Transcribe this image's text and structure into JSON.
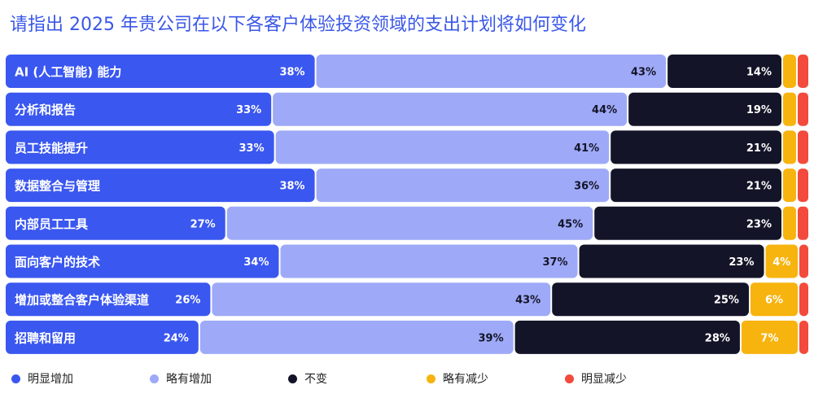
{
  "chart_data": {
    "type": "bar",
    "orientation": "horizontal",
    "stacked": true,
    "normalized_to": 100,
    "title": "请指出 2025 年贵公司在以下各客户体验投资领域的支出计划将如何变化",
    "categories": [
      "AI (人工智能) 能力",
      "分析和报告",
      "员工技能提升",
      "数据整合与管理",
      "内部员工工具",
      "面向客户的技术",
      "增加或整合客户体验渠道",
      "招聘和留用"
    ],
    "series": [
      {
        "name": "明显增加",
        "color": "#3a57f0",
        "values": [
          38,
          33,
          33,
          38,
          27,
          34,
          26,
          24
        ]
      },
      {
        "name": "略有增加",
        "color": "#9eaaf7",
        "values": [
          43,
          44,
          41,
          36,
          45,
          37,
          43,
          39
        ]
      },
      {
        "name": "不变",
        "color": "#141428",
        "values": [
          14,
          19,
          21,
          21,
          23,
          23,
          25,
          28
        ]
      },
      {
        "name": "略有减少",
        "color": "#f7b30e",
        "values": [
          null,
          null,
          null,
          null,
          null,
          4,
          6,
          7
        ]
      },
      {
        "name": "明显减少",
        "color": "#f24a3c",
        "values": [
          null,
          null,
          null,
          null,
          null,
          null,
          null,
          null
        ]
      }
    ],
    "legend_position": "bottom",
    "grid": false
  }
}
